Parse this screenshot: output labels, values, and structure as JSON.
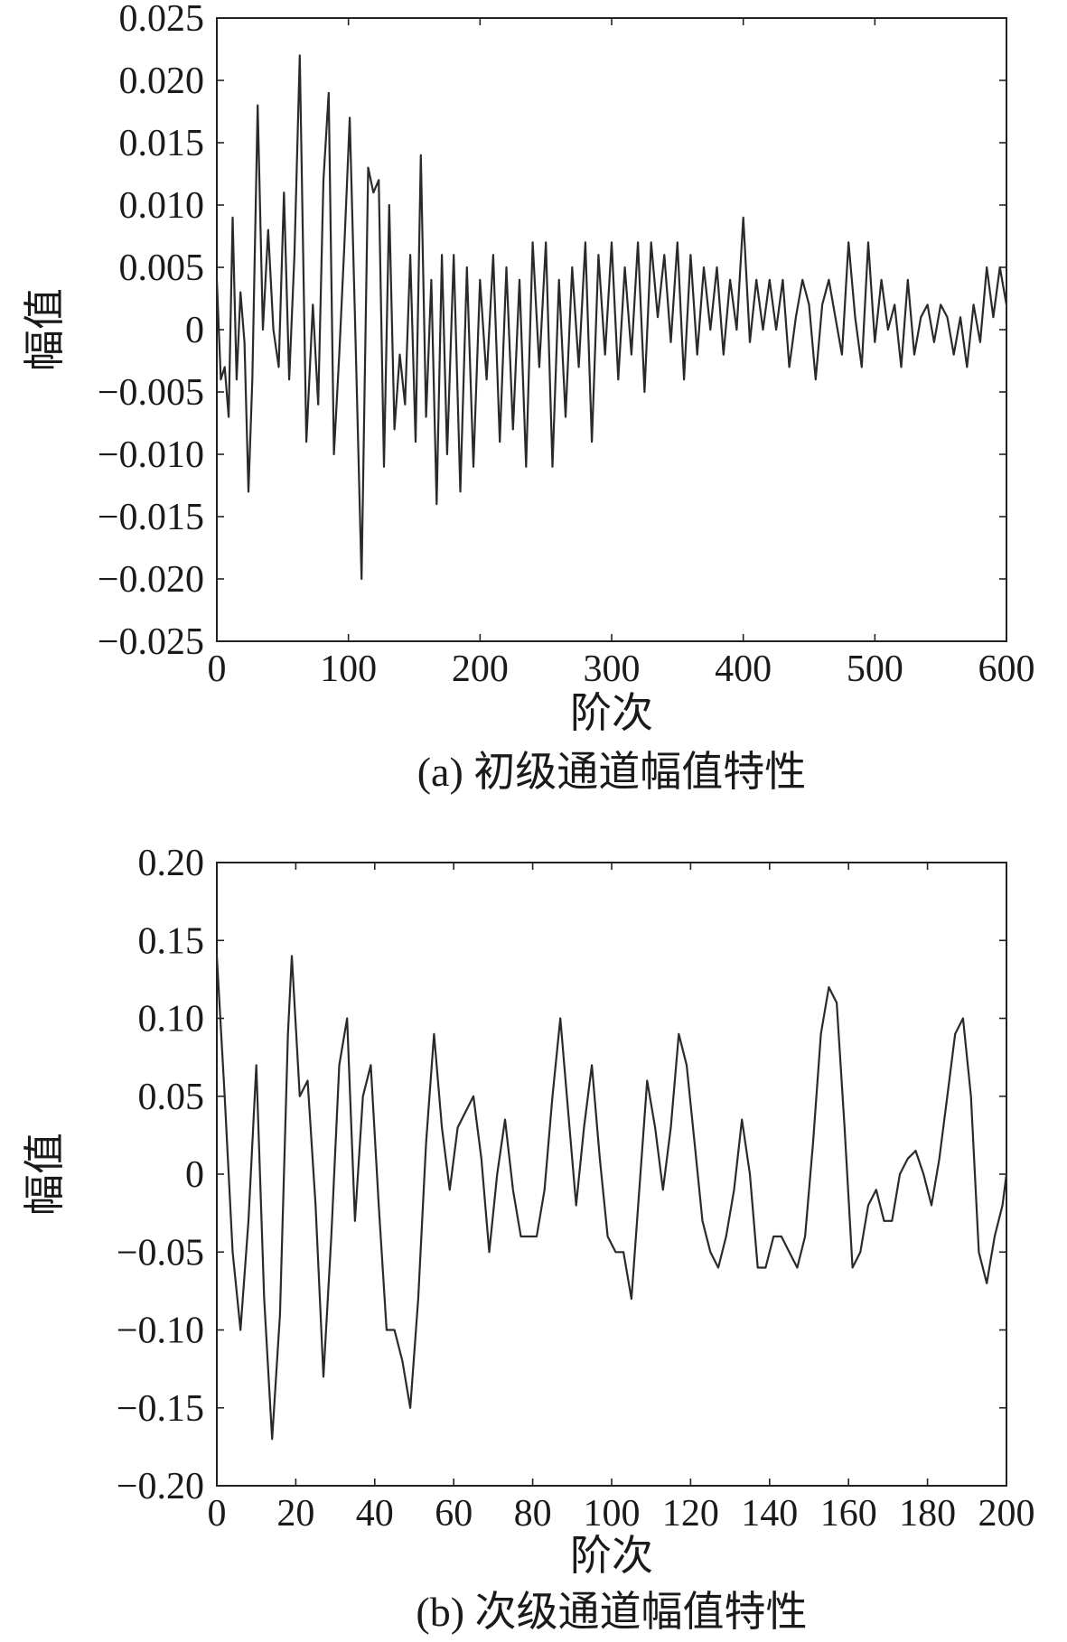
{
  "chart_data": [
    {
      "type": "line",
      "xlabel": "阶次",
      "ylabel": "幅值",
      "caption": "(a) 初级通道幅值特性",
      "xlim": [
        0,
        600
      ],
      "ylim": [
        -0.025,
        0.025
      ],
      "xticks": [
        0,
        100,
        200,
        300,
        400,
        500,
        600
      ],
      "xtick_labels": [
        "0",
        "100",
        "200",
        "300",
        "400",
        "500",
        "600"
      ],
      "yticks": [
        0.025,
        0.02,
        0.015,
        0.01,
        0.005,
        0,
        -0.005,
        -0.01,
        -0.015,
        -0.02,
        -0.025
      ],
      "ytick_labels": [
        "0.025",
        "0.020",
        "0.015",
        "0.010",
        "0.005",
        "0",
        "−0.005",
        "−0.010",
        "−0.015",
        "−0.020",
        "−0.025"
      ],
      "grid": false,
      "series": [
        {
          "x": [
            0,
            3,
            6,
            9,
            12,
            15,
            18,
            21,
            24,
            27,
            31,
            35,
            39,
            43,
            47,
            51,
            55,
            59,
            63,
            68,
            73,
            77,
            81,
            85,
            89,
            93,
            97,
            101,
            105,
            110,
            115,
            119,
            123,
            127,
            131,
            135,
            139,
            143,
            147,
            151,
            155,
            159,
            163,
            167,
            171,
            175,
            180,
            185,
            190,
            195,
            200,
            205,
            210,
            215,
            220,
            225,
            230,
            235,
            240,
            245,
            250,
            255,
            260,
            265,
            270,
            275,
            280,
            285,
            290,
            295,
            300,
            305,
            310,
            315,
            320,
            325,
            330,
            335,
            340,
            345,
            350,
            355,
            360,
            365,
            370,
            375,
            380,
            385,
            390,
            395,
            400,
            405,
            410,
            415,
            420,
            425,
            430,
            435,
            440,
            445,
            450,
            455,
            460,
            465,
            470,
            475,
            480,
            485,
            490,
            495,
            500,
            505,
            510,
            515,
            520,
            525,
            530,
            535,
            540,
            545,
            550,
            555,
            560,
            565,
            570,
            575,
            580,
            585,
            590,
            595,
            600
          ],
          "y": [
            0.004,
            -0.004,
            -0.003,
            -0.007,
            0.009,
            -0.004,
            0.003,
            -0.001,
            -0.013,
            -0.004,
            0.018,
            0.0,
            0.008,
            0.0,
            -0.003,
            0.011,
            -0.004,
            0.006,
            0.022,
            -0.009,
            0.002,
            -0.006,
            0.012,
            0.019,
            -0.01,
            -0.002,
            0.007,
            0.017,
            0.001,
            -0.02,
            0.013,
            0.011,
            0.012,
            -0.011,
            0.01,
            -0.008,
            -0.002,
            -0.006,
            0.006,
            -0.009,
            0.014,
            -0.007,
            0.004,
            -0.014,
            0.006,
            -0.01,
            0.006,
            -0.013,
            0.005,
            -0.011,
            0.004,
            -0.004,
            0.006,
            -0.009,
            0.005,
            -0.008,
            0.004,
            -0.011,
            0.007,
            -0.003,
            0.007,
            -0.011,
            0.004,
            -0.007,
            0.005,
            -0.003,
            0.007,
            -0.009,
            0.006,
            -0.002,
            0.007,
            -0.004,
            0.005,
            -0.002,
            0.007,
            -0.005,
            0.007,
            0.001,
            0.006,
            -0.001,
            0.007,
            -0.004,
            0.006,
            -0.002,
            0.005,
            0.0,
            0.005,
            -0.002,
            0.004,
            0.0,
            0.009,
            -0.001,
            0.004,
            0.0,
            0.004,
            0.0,
            0.004,
            -0.003,
            0.001,
            0.004,
            0.002,
            -0.004,
            0.002,
            0.004,
            0.001,
            -0.002,
            0.007,
            0.001,
            -0.003,
            0.007,
            -0.001,
            0.004,
            0.0,
            0.002,
            -0.003,
            0.004,
            -0.002,
            0.001,
            0.002,
            -0.001,
            0.002,
            0.001,
            -0.002,
            0.001,
            -0.003,
            0.002,
            -0.001,
            0.005,
            0.001,
            0.005,
            0.002
          ]
        }
      ]
    },
    {
      "type": "line",
      "xlabel": "阶次",
      "ylabel": "幅值",
      "caption": "(b) 次级通道幅值特性",
      "xlim": [
        0,
        200
      ],
      "ylim": [
        -0.2,
        0.2
      ],
      "xticks": [
        0,
        20,
        40,
        60,
        80,
        100,
        120,
        140,
        160,
        180,
        200
      ],
      "xtick_labels": [
        "0",
        "20",
        "40",
        "60",
        "80",
        "100",
        "120",
        "140",
        "160",
        "180",
        "200"
      ],
      "yticks": [
        0.2,
        0.15,
        0.1,
        0.05,
        0,
        -0.05,
        -0.1,
        -0.15,
        -0.2
      ],
      "ytick_labels": [
        "0.20",
        "0.15",
        "0.10",
        "0.05",
        "0",
        "−0.05",
        "−0.10",
        "−0.15",
        "−0.20"
      ],
      "grid": false,
      "series": [
        {
          "x": [
            0,
            2,
            4,
            6,
            8,
            10,
            12,
            14,
            16,
            18,
            19,
            21,
            23,
            25,
            27,
            29,
            31,
            33,
            35,
            37,
            39,
            41,
            43,
            45,
            47,
            49,
            51,
            53,
            55,
            57,
            59,
            61,
            63,
            65,
            67,
            69,
            71,
            73,
            75,
            77,
            79,
            81,
            83,
            85,
            87,
            89,
            91,
            93,
            95,
            97,
            99,
            101,
            103,
            105,
            107,
            109,
            111,
            113,
            115,
            117,
            119,
            121,
            123,
            125,
            127,
            129,
            131,
            133,
            135,
            137,
            139,
            141,
            143,
            145,
            147,
            149,
            151,
            153,
            155,
            157,
            159,
            161,
            163,
            165,
            167,
            169,
            171,
            173,
            175,
            177,
            179,
            181,
            183,
            185,
            187,
            189,
            191,
            193,
            195,
            197,
            199,
            200
          ],
          "y": [
            0.14,
            0.05,
            -0.05,
            -0.1,
            -0.03,
            0.07,
            -0.08,
            -0.17,
            -0.09,
            0.09,
            0.14,
            0.05,
            0.06,
            -0.02,
            -0.13,
            -0.04,
            0.07,
            0.1,
            -0.03,
            0.05,
            0.07,
            -0.02,
            -0.1,
            -0.1,
            -0.12,
            -0.15,
            -0.08,
            0.02,
            0.09,
            0.03,
            -0.01,
            0.03,
            0.04,
            0.05,
            0.01,
            -0.05,
            0.0,
            0.035,
            -0.01,
            -0.04,
            -0.04,
            -0.04,
            -0.01,
            0.05,
            0.1,
            0.04,
            -0.02,
            0.03,
            0.07,
            0.01,
            -0.04,
            -0.05,
            -0.05,
            -0.08,
            -0.01,
            0.06,
            0.03,
            -0.01,
            0.03,
            0.09,
            0.07,
            0.02,
            -0.03,
            -0.05,
            -0.06,
            -0.04,
            -0.01,
            0.035,
            0.0,
            -0.06,
            -0.06,
            -0.04,
            -0.04,
            -0.05,
            -0.06,
            -0.04,
            0.02,
            0.09,
            0.12,
            0.11,
            0.03,
            -0.06,
            -0.05,
            -0.02,
            -0.01,
            -0.03,
            -0.03,
            0.0,
            0.01,
            0.015,
            0.0,
            -0.02,
            0.01,
            0.05,
            0.09,
            0.1,
            0.05,
            -0.05,
            -0.07,
            -0.04,
            -0.02,
            0.0
          ]
        }
      ]
    }
  ]
}
